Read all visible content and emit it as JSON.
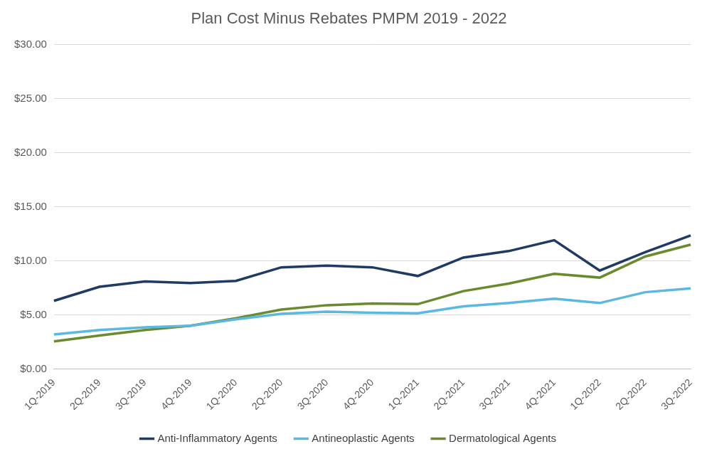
{
  "chart_data": {
    "type": "line",
    "title": "Plan Cost Minus Rebates PMPM 2019 - 2022",
    "categories": [
      "1Q-2019",
      "2Q-2019",
      "3Q-2019",
      "4Q-2019",
      "1Q-2020",
      "2Q-2020",
      "3Q-2020",
      "4Q-2020",
      "1Q-2021",
      "2Q-2021",
      "3Q-2021",
      "4Q-2021",
      "1Q-2022",
      "2Q-2022",
      "3Q-2022"
    ],
    "series": [
      {
        "name": "Anti-Inflammatory Agents",
        "color": "#1f3b64",
        "values": [
          6.3,
          7.6,
          8.1,
          7.95,
          8.15,
          9.4,
          9.55,
          9.4,
          8.6,
          10.3,
          10.9,
          11.9,
          9.1,
          10.8,
          12.35
        ]
      },
      {
        "name": "Antineoplastic Agents",
        "color": "#5bb8e0",
        "values": [
          3.2,
          3.6,
          3.85,
          4.0,
          4.6,
          5.1,
          5.3,
          5.2,
          5.15,
          5.8,
          6.1,
          6.5,
          6.1,
          7.1,
          7.45
        ]
      },
      {
        "name": "Dermatological Agents",
        "color": "#6a8a2e",
        "values": [
          2.55,
          3.1,
          3.6,
          4.0,
          4.7,
          5.5,
          5.9,
          6.05,
          6.0,
          7.2,
          7.9,
          8.8,
          8.45,
          10.4,
          11.5
        ]
      }
    ],
    "ylim": [
      0,
      30
    ],
    "yticks": [
      {
        "value": 0,
        "label": "$0.00"
      },
      {
        "value": 5,
        "label": "$5.00"
      },
      {
        "value": 10,
        "label": "$10.00"
      },
      {
        "value": 15,
        "label": "$15.00"
      },
      {
        "value": 20,
        "label": "$20.00"
      },
      {
        "value": 25,
        "label": "$25.00"
      },
      {
        "value": 30,
        "label": "$30.00"
      }
    ],
    "grid": true,
    "legend": "bottom"
  }
}
